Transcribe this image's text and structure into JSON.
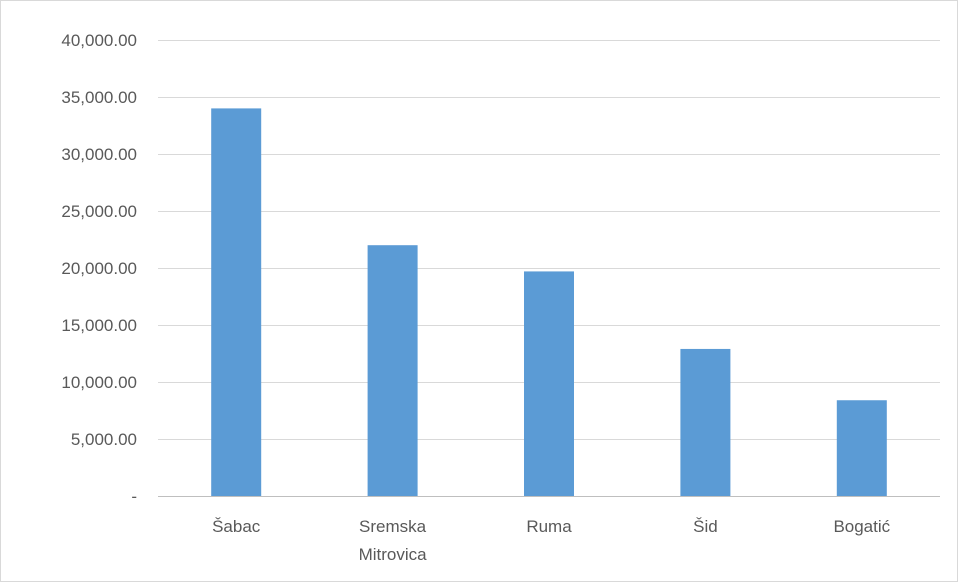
{
  "chart_data": {
    "type": "bar",
    "title": "",
    "xlabel": "",
    "ylabel": "",
    "categories": [
      "Šabac",
      "Sremska Mitrovica",
      "Ruma",
      "Šid",
      "Bogatić"
    ],
    "category_lines": [
      [
        "Šabac"
      ],
      [
        "Sremska",
        "Mitrovica"
      ],
      [
        "Ruma"
      ],
      [
        "Šid"
      ],
      [
        "Bogatić"
      ]
    ],
    "values": [
      34000,
      22000,
      19700,
      12900,
      8400
    ],
    "ylim": [
      0,
      40000
    ],
    "yticks": [
      0,
      5000,
      10000,
      15000,
      20000,
      25000,
      30000,
      35000,
      40000
    ],
    "ytick_labels": [
      "-",
      "5,000.00",
      "10,000.00",
      "15,000.00",
      "20,000.00",
      "25,000.00",
      "30,000.00",
      "35,000.00",
      "40,000.00"
    ],
    "grid": true,
    "legend": "none",
    "bar_color": "#5b9bd5"
  }
}
